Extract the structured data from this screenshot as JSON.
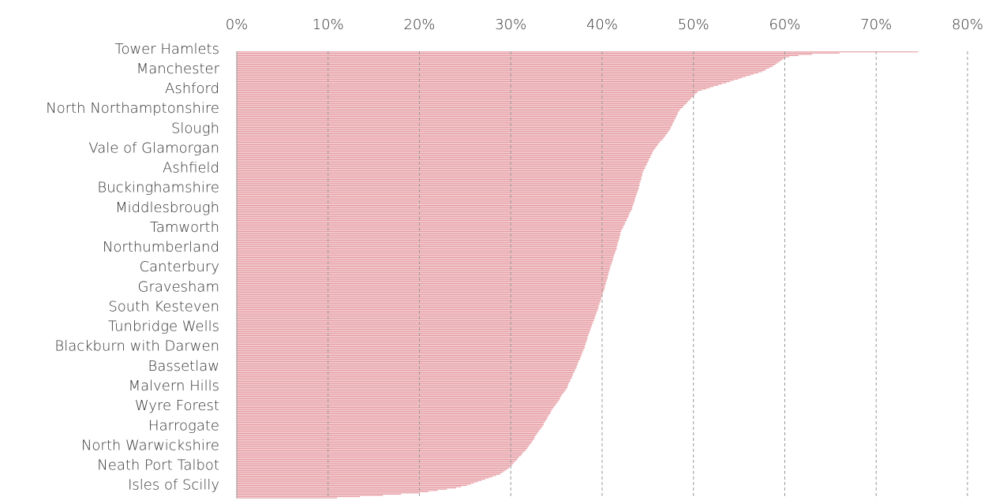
{
  "chart_data": {
    "type": "bar",
    "orientation": "horizontal",
    "color": "#e59aa1",
    "categories": [
      "Tower Hamlets",
      null,
      null,
      null,
      null,
      null,
      null,
      null,
      null,
      null,
      null,
      null,
      null,
      null,
      null,
      null,
      "Manchester",
      null,
      null,
      null,
      null,
      null,
      null,
      null,
      null,
      null,
      null,
      null,
      null,
      null,
      null,
      null,
      "Ashford",
      null,
      null,
      null,
      null,
      null,
      null,
      null,
      null,
      null,
      null,
      null,
      null,
      null,
      null,
      null,
      "North Northamptonshire",
      null,
      null,
      null,
      null,
      null,
      null,
      null,
      null,
      null,
      null,
      null,
      null,
      null,
      null,
      null,
      "Slough",
      null,
      null,
      null,
      null,
      null,
      null,
      null,
      null,
      null,
      null,
      null,
      null,
      null,
      null,
      null,
      "Vale of Glamorgan",
      null,
      null,
      null,
      null,
      null,
      null,
      null,
      null,
      null,
      null,
      null,
      null,
      null,
      null,
      null,
      "Ashfield",
      null,
      null,
      null,
      null,
      null,
      null,
      null,
      null,
      null,
      null,
      null,
      null,
      null,
      null,
      null,
      "Buckinghamshire",
      null,
      null,
      null,
      null,
      null,
      null,
      null,
      null,
      null,
      null,
      null,
      null,
      null,
      null,
      null,
      "Middlesbrough",
      null,
      null,
      null,
      null,
      null,
      null,
      null,
      null,
      null,
      null,
      null,
      null,
      null,
      null,
      null,
      "Tamworth",
      null,
      null,
      null,
      null,
      null,
      null,
      null,
      null,
      null,
      null,
      null,
      null,
      null,
      null,
      null,
      "Northumberland",
      null,
      null,
      null,
      null,
      null,
      null,
      null,
      null,
      null,
      null,
      null,
      null,
      null,
      null,
      null,
      "Canterbury",
      null,
      null,
      null,
      null,
      null,
      null,
      null,
      null,
      null,
      null,
      null,
      null,
      null,
      null,
      null,
      "Gravesham",
      null,
      null,
      null,
      null,
      null,
      null,
      null,
      null,
      null,
      null,
      null,
      null,
      null,
      null,
      null,
      "South Kesteven",
      null,
      null,
      null,
      null,
      null,
      null,
      null,
      null,
      null,
      null,
      null,
      null,
      null,
      null,
      null,
      "Tunbridge Wells",
      null,
      null,
      null,
      null,
      null,
      null,
      null,
      null,
      null,
      null,
      null,
      null,
      null,
      null,
      null,
      "Blackburn with Darwen",
      null,
      null,
      null,
      null,
      null,
      null,
      null,
      null,
      null,
      null,
      null,
      null,
      null,
      null,
      null,
      "Bassetlaw",
      null,
      null,
      null,
      null,
      null,
      null,
      null,
      null,
      null,
      null,
      null,
      null,
      null,
      null,
      null,
      "Malvern Hills",
      null,
      null,
      null,
      null,
      null,
      null,
      null,
      null,
      null,
      null,
      null,
      null,
      null,
      null,
      null,
      "Wyre Forest",
      null,
      null,
      null,
      null,
      null,
      null,
      null,
      null,
      null,
      null,
      null,
      null,
      null,
      null,
      null,
      "Harrogate",
      null,
      null,
      null,
      null,
      null,
      null,
      null,
      null,
      null,
      null,
      null,
      null,
      null,
      null,
      null,
      "North Warwickshire",
      null,
      null,
      null,
      null,
      null,
      null,
      null,
      null,
      null,
      null,
      null,
      null,
      null,
      null,
      null,
      "Neath Port Talbot",
      null,
      null,
      null,
      null,
      null,
      null,
      null,
      null,
      null,
      null,
      null,
      null,
      null,
      null,
      null,
      "Isles of Scilly",
      null,
      null,
      null,
      null,
      null,
      null,
      null,
      null
    ],
    "values": [
      74.6,
      66,
      63,
      61.5,
      60.5,
      60,
      59.8,
      59.6,
      59.4,
      59.2,
      59,
      58.8,
      58.6,
      58.3,
      58,
      57.8,
      57.5,
      57.1,
      56.6,
      56.2,
      55.7,
      55.3,
      54.9,
      54.4,
      54,
      53.6,
      53.1,
      52.7,
      52.2,
      51.8,
      51.4,
      50.9,
      50.5,
      50.4,
      50.2,
      50.1,
      50,
      49.8,
      49.7,
      49.6,
      49.4,
      49.3,
      49.2,
      49,
      48.9,
      48.8,
      48.6,
      48.5,
      48.4,
      48.3,
      48.3,
      48.2,
      48.1,
      48.1,
      48,
      47.9,
      47.9,
      47.8,
      47.7,
      47.7,
      47.6,
      47.5,
      47.5,
      47.4,
      47.3,
      47.2,
      47.1,
      47,
      46.9,
      46.8,
      46.7,
      46.6,
      46.4,
      46.3,
      46.2,
      46.1,
      46,
      45.9,
      45.8,
      45.7,
      45.6,
      45.5,
      45.5,
      45.4,
      45.3,
      45.3,
      45.2,
      45.1,
      45.1,
      45,
      44.9,
      44.9,
      44.8,
      44.7,
      44.7,
      44.6,
      44.5,
      44.5,
      44.4,
      44.4,
      44.4,
      44.3,
      44.3,
      44.3,
      44.2,
      44.2,
      44.1,
      44.1,
      44.1,
      44,
      44,
      44,
      43.9,
      43.9,
      43.8,
      43.8,
      43.7,
      43.7,
      43.6,
      43.6,
      43.6,
      43.5,
      43.5,
      43.4,
      43.4,
      43.3,
      43.3,
      43.3,
      43.2,
      43.1,
      43,
      43,
      42.9,
      42.9,
      42.8,
      42.7,
      42.7,
      42.6,
      42.5,
      42.5,
      42.4,
      42.3,
      42.3,
      42.2,
      42.1,
      42.1,
      42,
      42,
      42,
      41.9,
      41.9,
      41.9,
      41.8,
      41.8,
      41.7,
      41.7,
      41.7,
      41.6,
      41.6,
      41.6,
      41.5,
      41.5,
      41.4,
      41.4,
      41.3,
      41.3,
      41.2,
      41.2,
      41.2,
      41.1,
      41.1,
      41,
      41,
      40.9,
      40.9,
      40.9,
      40.8,
      40.8,
      40.7,
      40.7,
      40.7,
      40.6,
      40.6,
      40.6,
      40.5,
      40.5,
      40.4,
      40.4,
      40.4,
      40.3,
      40.3,
      40.3,
      40.2,
      40.2,
      40.1,
      40.1,
      40,
      40,
      39.9,
      39.9,
      39.9,
      39.8,
      39.8,
      39.7,
      39.7,
      39.6,
      39.6,
      39.6,
      39.5,
      39.5,
      39.4,
      39.4,
      39.3,
      39.3,
      39.2,
      39.2,
      39.1,
      39.1,
      39,
      39,
      38.9,
      38.9,
      38.8,
      38.8,
      38.7,
      38.7,
      38.6,
      38.6,
      38.5,
      38.5,
      38.4,
      38.4,
      38.4,
      38.3,
      38.3,
      38.2,
      38.2,
      38.1,
      38.1,
      38.1,
      38,
      37.9,
      37.9,
      37.8,
      37.8,
      37.7,
      37.7,
      37.6,
      37.6,
      37.5,
      37.4,
      37.4,
      37.3,
      37.3,
      37.2,
      37.2,
      37.1,
      37,
      37,
      36.9,
      36.8,
      36.8,
      36.7,
      36.7,
      36.6,
      36.5,
      36.5,
      36.4,
      36.3,
      36.3,
      36.2,
      36.2,
      36.1,
      36,
      35.9,
      35.8,
      35.7,
      35.6,
      35.5,
      35.4,
      35.4,
      35.3,
      35.2,
      35.1,
      35,
      34.9,
      34.8,
      34.7,
      34.6,
      34.5,
      34.4,
      34.4,
      34.3,
      34.2,
      34.1,
      34,
      34,
      33.9,
      33.8,
      33.7,
      33.6,
      33.6,
      33.5,
      33.4,
      33.3,
      33.2,
      33.1,
      33,
      32.9,
      32.8,
      32.7,
      32.6,
      32.6,
      32.5,
      32.4,
      32.3,
      32.2,
      32.1,
      32,
      31.9,
      31.8,
      31.7,
      31.6,
      31.4,
      31.3,
      31.2,
      31.1,
      30.9,
      30.8,
      30.7,
      30.6,
      30.4,
      30.3,
      30.2,
      30.1,
      29.9,
      29.8,
      29.6,
      29.4,
      29.2,
      29,
      28.8,
      28.4,
      28,
      27.6,
      27.2,
      26.8,
      26.4,
      26,
      25.6,
      25.2,
      24.6,
      24,
      23,
      22,
      21,
      20,
      18,
      16,
      13.5,
      11
    ],
    "xlim": [
      0,
      80
    ],
    "xticks": [
      {
        "value": 0,
        "label": "0%"
      },
      {
        "value": 10,
        "label": "10%"
      },
      {
        "value": 20,
        "label": "20%"
      },
      {
        "value": 30,
        "label": "30%"
      },
      {
        "value": 40,
        "label": "40%"
      },
      {
        "value": 50,
        "label": "50%"
      },
      {
        "value": 60,
        "label": "60%"
      },
      {
        "value": 70,
        "label": "70%"
      },
      {
        "value": 80,
        "label": "80%"
      }
    ],
    "grid": true
  }
}
